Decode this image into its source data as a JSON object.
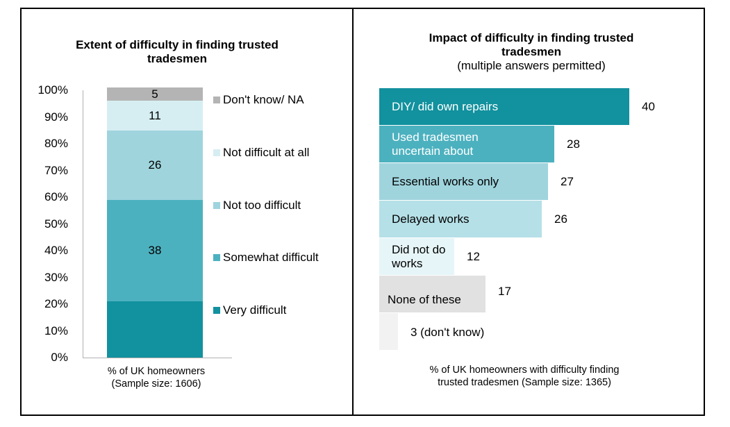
{
  "colors": {
    "very_difficult": "#12919e",
    "somewhat_difficult": "#4cb1bf",
    "not_too_difficult": "#9fd4dd",
    "not_difficult_at_all": "#d6eef2",
    "dont_know": "#b4b4b4"
  },
  "chart_data": [
    {
      "type": "bar",
      "stacked": true,
      "title": "Extent of difficulty in finding trusted tradesmen",
      "xlabel": "% of UK homeowners",
      "xlabel_note": "(Sample size: 1606)",
      "ylim": [
        0,
        100
      ],
      "yticks": [
        "0%",
        "10%",
        "20%",
        "30%",
        "40%",
        "50%",
        "60%",
        "70%",
        "80%",
        "90%",
        "100%"
      ],
      "categories": [
        "% of UK homeowners"
      ],
      "series": [
        {
          "name": "Very difficult",
          "values": [
            21
          ],
          "label": ""
        },
        {
          "name": "Somewhat difficult",
          "values": [
            38
          ],
          "label": "38"
        },
        {
          "name": "Not too difficult",
          "values": [
            26
          ],
          "label": "26"
        },
        {
          "name": "Not difficult at all",
          "values": [
            11
          ],
          "label": "11"
        },
        {
          "name": "Don't know/ NA",
          "values": [
            5
          ],
          "label": "5"
        }
      ],
      "legend": [
        "Don't know/ NA",
        "Not difficult at all",
        "Not too difficult",
        "Somewhat difficult",
        "Very difficult"
      ]
    },
    {
      "type": "bar",
      "orientation": "horizontal",
      "title": "Impact of difficulty in finding trusted tradesmen",
      "subtitle": "(multiple answers permitted)",
      "xlabel": "% of UK homeowners with difficulty finding",
      "xlabel_line2": "trusted tradesmen (Sample size: 1365)",
      "categories": [
        "DIY/ did own repairs",
        "Used tradesmen uncertain about",
        "Essential works only",
        "Delayed works",
        "Did not do works",
        "None of these",
        "(don't know)"
      ],
      "category_lines": [
        [
          "DIY/ did own repairs"
        ],
        [
          "Used tradesmen",
          "uncertain about"
        ],
        [
          "Essential works only"
        ],
        [
          "Delayed works"
        ],
        [
          "Did not do",
          "works"
        ],
        [
          "None of these"
        ],
        []
      ],
      "values": [
        40,
        28,
        27,
        26,
        12,
        17,
        3
      ],
      "value_labels": [
        "40",
        "28",
        "27",
        "26",
        "12",
        "17",
        "3 (don't know)"
      ],
      "bar_colors": [
        "#12919e",
        "#4cb1bf",
        "#9fd4dd",
        "#b5e0e7",
        "#e6f5f8",
        "#e1e1e1",
        "#f2f2f2"
      ],
      "label_colors": [
        "#ffffff",
        "#ffffff",
        "#000000",
        "#000000",
        "#000000",
        "#000000",
        "#000000"
      ]
    }
  ]
}
